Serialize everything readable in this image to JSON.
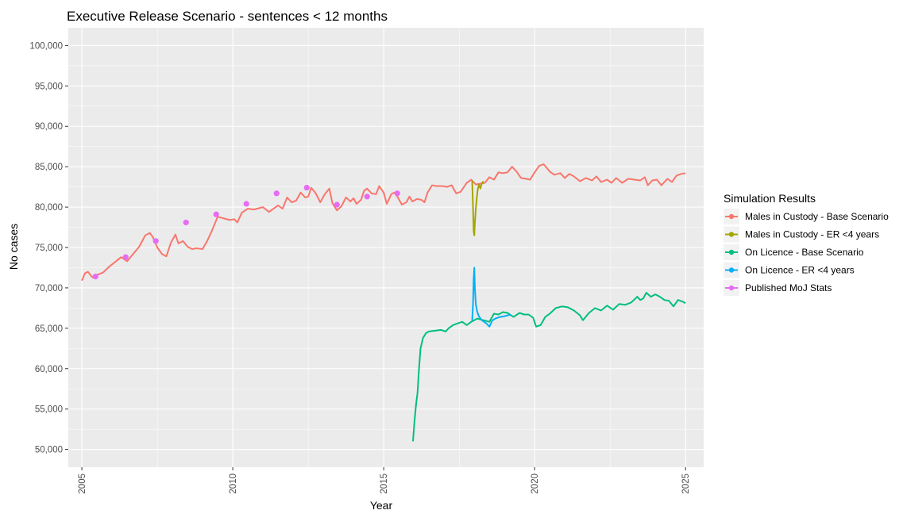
{
  "chart_data": {
    "type": "line",
    "title": "Executive Release Scenario - sentences < 12 months",
    "xlabel": "Year",
    "ylabel": "No cases",
    "xlim": [
      2004.55,
      2025.6
    ],
    "ylim": [
      47800,
      102200
    ],
    "x_ticks": [
      2005,
      2010,
      2015,
      2020,
      2025
    ],
    "x_tick_labels": [
      "2005",
      "2010",
      "2015",
      "2020",
      "2025"
    ],
    "y_ticks": [
      50000,
      55000,
      60000,
      65000,
      70000,
      75000,
      80000,
      85000,
      90000,
      95000,
      100000
    ],
    "y_tick_labels": [
      "50,000",
      "55,000",
      "60,000",
      "65,000",
      "70,000",
      "75,000",
      "80,000",
      "85,000",
      "90,000",
      "95,000",
      "100,000"
    ],
    "grid": true,
    "legend": {
      "title": "Simulation Results",
      "position": "right"
    },
    "series": [
      {
        "name": "Males in Custody - Base Scenario",
        "color": "#f8766d",
        "mode": "line",
        "points": [
          [
            2005.0,
            70900
          ],
          [
            2005.1,
            71800
          ],
          [
            2005.2,
            72000
          ],
          [
            2005.35,
            71300
          ],
          [
            2005.5,
            71600
          ],
          [
            2005.7,
            71900
          ],
          [
            2005.9,
            72600
          ],
          [
            2006.1,
            73200
          ],
          [
            2006.3,
            73800
          ],
          [
            2006.5,
            73300
          ],
          [
            2006.7,
            74200
          ],
          [
            2006.9,
            75100
          ],
          [
            2007.1,
            76500
          ],
          [
            2007.25,
            76800
          ],
          [
            2007.35,
            76300
          ],
          [
            2007.5,
            75000
          ],
          [
            2007.65,
            74200
          ],
          [
            2007.8,
            73900
          ],
          [
            2007.95,
            75600
          ],
          [
            2008.1,
            76600
          ],
          [
            2008.2,
            75500
          ],
          [
            2008.35,
            75800
          ],
          [
            2008.5,
            75100
          ],
          [
            2008.65,
            74800
          ],
          [
            2008.8,
            74900
          ],
          [
            2009.0,
            74800
          ],
          [
            2009.15,
            75800
          ],
          [
            2009.3,
            77000
          ],
          [
            2009.5,
            78800
          ],
          [
            2009.7,
            78600
          ],
          [
            2009.9,
            78400
          ],
          [
            2010.05,
            78500
          ],
          [
            2010.15,
            78100
          ],
          [
            2010.3,
            79300
          ],
          [
            2010.5,
            79800
          ],
          [
            2010.7,
            79700
          ],
          [
            2010.9,
            79900
          ],
          [
            2011.0,
            80000
          ],
          [
            2011.2,
            79400
          ],
          [
            2011.35,
            79800
          ],
          [
            2011.5,
            80200
          ],
          [
            2011.65,
            79800
          ],
          [
            2011.8,
            81200
          ],
          [
            2011.95,
            80600
          ],
          [
            2012.1,
            80800
          ],
          [
            2012.25,
            81800
          ],
          [
            2012.4,
            81200
          ],
          [
            2012.5,
            81300
          ],
          [
            2012.6,
            82400
          ],
          [
            2012.75,
            81700
          ],
          [
            2012.9,
            80600
          ],
          [
            2013.05,
            81600
          ],
          [
            2013.2,
            82300
          ],
          [
            2013.3,
            80500
          ],
          [
            2013.45,
            79600
          ],
          [
            2013.6,
            80100
          ],
          [
            2013.75,
            81200
          ],
          [
            2013.9,
            80700
          ],
          [
            2014.0,
            81100
          ],
          [
            2014.1,
            80400
          ],
          [
            2014.25,
            80900
          ],
          [
            2014.35,
            82000
          ],
          [
            2014.45,
            82300
          ],
          [
            2014.6,
            81700
          ],
          [
            2014.75,
            81600
          ],
          [
            2014.85,
            82600
          ],
          [
            2015.0,
            81800
          ],
          [
            2015.1,
            80400
          ],
          [
            2015.25,
            81600
          ],
          [
            2015.35,
            81800
          ],
          [
            2015.45,
            81300
          ],
          [
            2015.6,
            80300
          ],
          [
            2015.75,
            80600
          ],
          [
            2015.85,
            81300
          ],
          [
            2015.95,
            80700
          ],
          [
            2016.1,
            81000
          ],
          [
            2016.25,
            80900
          ],
          [
            2016.35,
            80600
          ],
          [
            2016.45,
            81800
          ],
          [
            2016.6,
            82700
          ],
          [
            2016.75,
            82600
          ],
          [
            2016.95,
            82600
          ],
          [
            2017.1,
            82500
          ],
          [
            2017.25,
            82700
          ],
          [
            2017.4,
            81700
          ],
          [
            2017.55,
            81900
          ],
          [
            2017.75,
            83000
          ],
          [
            2017.9,
            83400
          ],
          [
            2018.05,
            82800
          ],
          [
            2018.2,
            82900
          ],
          [
            2018.35,
            83000
          ],
          [
            2018.5,
            83700
          ],
          [
            2018.65,
            83400
          ],
          [
            2018.8,
            84300
          ],
          [
            2018.95,
            84200
          ],
          [
            2019.1,
            84300
          ],
          [
            2019.25,
            85000
          ],
          [
            2019.4,
            84400
          ],
          [
            2019.55,
            83600
          ],
          [
            2019.7,
            83500
          ],
          [
            2019.85,
            83400
          ],
          [
            2020.0,
            84300
          ],
          [
            2020.15,
            85100
          ],
          [
            2020.3,
            85300
          ],
          [
            2020.5,
            84400
          ],
          [
            2020.65,
            84000
          ],
          [
            2020.85,
            84200
          ],
          [
            2021.0,
            83600
          ],
          [
            2021.15,
            84100
          ],
          [
            2021.3,
            83800
          ],
          [
            2021.5,
            83200
          ],
          [
            2021.7,
            83600
          ],
          [
            2021.9,
            83300
          ],
          [
            2022.05,
            83800
          ],
          [
            2022.2,
            83100
          ],
          [
            2022.4,
            83400
          ],
          [
            2022.55,
            83000
          ],
          [
            2022.7,
            83600
          ],
          [
            2022.9,
            83000
          ],
          [
            2023.1,
            83500
          ],
          [
            2023.3,
            83400
          ],
          [
            2023.5,
            83300
          ],
          [
            2023.65,
            83700
          ],
          [
            2023.75,
            82700
          ],
          [
            2023.9,
            83300
          ],
          [
            2024.05,
            83400
          ],
          [
            2024.2,
            82700
          ],
          [
            2024.4,
            83500
          ],
          [
            2024.55,
            83100
          ],
          [
            2024.7,
            83900
          ],
          [
            2024.85,
            84100
          ],
          [
            2025.0,
            84200
          ]
        ]
      },
      {
        "name": "Males in Custody - ER <4 years",
        "color": "#a3a500",
        "mode": "line",
        "points": [
          [
            2017.93,
            83300
          ],
          [
            2017.96,
            80000
          ],
          [
            2017.98,
            77000
          ],
          [
            2018.0,
            76500
          ],
          [
            2018.02,
            78000
          ],
          [
            2018.05,
            79700
          ],
          [
            2018.08,
            81000
          ],
          [
            2018.12,
            82300
          ],
          [
            2018.16,
            82800
          ],
          [
            2018.2,
            82300
          ],
          [
            2018.25,
            82900
          ],
          [
            2018.3,
            83200
          ]
        ]
      },
      {
        "name": "On Licence - Base Scenario",
        "color": "#00bf7d",
        "mode": "line",
        "points": [
          [
            2015.97,
            51000
          ],
          [
            2016.02,
            53500
          ],
          [
            2016.07,
            55500
          ],
          [
            2016.12,
            57000
          ],
          [
            2016.17,
            60000
          ],
          [
            2016.22,
            62500
          ],
          [
            2016.3,
            63800
          ],
          [
            2016.4,
            64400
          ],
          [
            2016.5,
            64600
          ],
          [
            2016.7,
            64700
          ],
          [
            2016.9,
            64800
          ],
          [
            2017.05,
            64600
          ],
          [
            2017.15,
            65000
          ],
          [
            2017.3,
            65400
          ],
          [
            2017.45,
            65600
          ],
          [
            2017.6,
            65800
          ],
          [
            2017.75,
            65400
          ],
          [
            2017.9,
            65800
          ],
          [
            2018.1,
            66200
          ],
          [
            2018.3,
            66000
          ],
          [
            2018.5,
            65800
          ],
          [
            2018.65,
            66800
          ],
          [
            2018.8,
            66700
          ],
          [
            2018.95,
            67000
          ],
          [
            2019.1,
            66900
          ],
          [
            2019.3,
            66400
          ],
          [
            2019.5,
            66900
          ],
          [
            2019.65,
            66700
          ],
          [
            2019.8,
            66700
          ],
          [
            2019.95,
            66300
          ],
          [
            2020.05,
            65200
          ],
          [
            2020.2,
            65400
          ],
          [
            2020.35,
            66400
          ],
          [
            2020.5,
            66800
          ],
          [
            2020.7,
            67500
          ],
          [
            2020.9,
            67700
          ],
          [
            2021.1,
            67600
          ],
          [
            2021.3,
            67200
          ],
          [
            2021.5,
            66600
          ],
          [
            2021.6,
            66000
          ],
          [
            2021.8,
            66900
          ],
          [
            2022.0,
            67500
          ],
          [
            2022.2,
            67200
          ],
          [
            2022.4,
            67800
          ],
          [
            2022.6,
            67300
          ],
          [
            2022.8,
            68000
          ],
          [
            2023.0,
            67900
          ],
          [
            2023.2,
            68200
          ],
          [
            2023.4,
            68900
          ],
          [
            2023.5,
            68500
          ],
          [
            2023.6,
            68700
          ],
          [
            2023.7,
            69400
          ],
          [
            2023.85,
            68900
          ],
          [
            2024.0,
            69200
          ],
          [
            2024.15,
            68900
          ],
          [
            2024.3,
            68500
          ],
          [
            2024.45,
            68400
          ],
          [
            2024.6,
            67700
          ],
          [
            2024.75,
            68500
          ],
          [
            2024.9,
            68300
          ],
          [
            2025.0,
            68100
          ]
        ]
      },
      {
        "name": "On Licence - ER <4 years",
        "color": "#00b0f6",
        "mode": "line",
        "points": [
          [
            2017.93,
            65900
          ],
          [
            2017.96,
            68000
          ],
          [
            2017.98,
            71000
          ],
          [
            2018.0,
            72500
          ],
          [
            2018.02,
            70000
          ],
          [
            2018.05,
            68000
          ],
          [
            2018.1,
            67000
          ],
          [
            2018.15,
            66500
          ],
          [
            2018.25,
            66000
          ],
          [
            2018.4,
            65600
          ],
          [
            2018.5,
            65200
          ],
          [
            2018.6,
            66000
          ],
          [
            2018.7,
            66200
          ],
          [
            2018.85,
            66400
          ],
          [
            2019.0,
            66500
          ],
          [
            2019.2,
            66700
          ]
        ]
      },
      {
        "name": "Published MoJ Stats",
        "color": "#e76bf3",
        "mode": "points",
        "points": [
          [
            2005.45,
            71400
          ],
          [
            2006.45,
            73800
          ],
          [
            2007.45,
            75800
          ],
          [
            2008.45,
            78100
          ],
          [
            2009.45,
            79100
          ],
          [
            2010.45,
            80400
          ],
          [
            2011.45,
            81700
          ],
          [
            2012.45,
            82400
          ],
          [
            2013.45,
            80300
          ],
          [
            2014.45,
            81300
          ],
          [
            2015.45,
            81700
          ]
        ]
      }
    ]
  }
}
